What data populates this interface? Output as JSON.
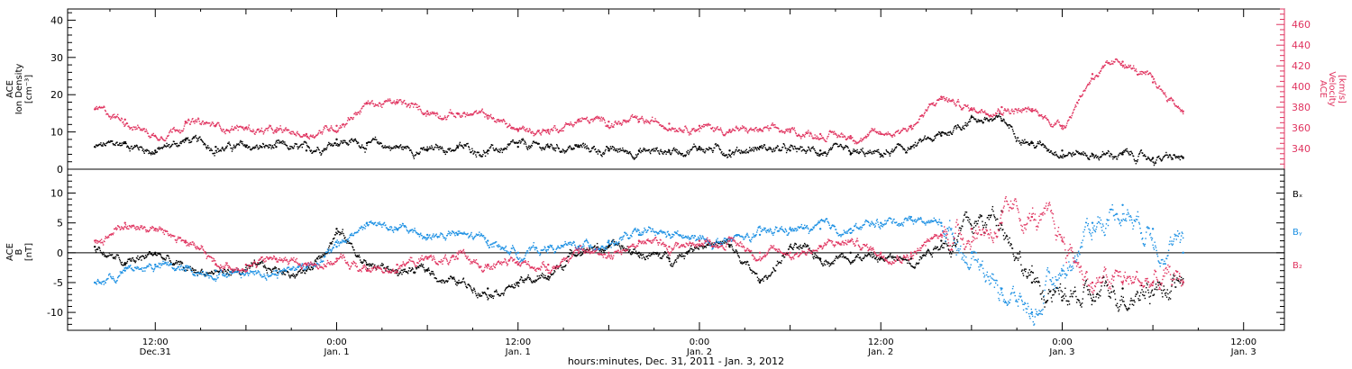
{
  "colors": {
    "density": "#000000",
    "velocity": "#e0335f",
    "bx": "#000000",
    "by": "#1a8fe3",
    "bz": "#e0335f"
  },
  "x_axis": {
    "label": "hours:minutes, Dec. 31, 2011 - Jan.  3, 2012",
    "ticks": [
      {
        "h": 12,
        "time": "12:00",
        "date": "Dec.31"
      },
      {
        "h": 24,
        "time": "0:00",
        "date": "Jan. 1"
      },
      {
        "h": 36,
        "time": "12:00",
        "date": "Jan. 1"
      },
      {
        "h": 48,
        "time": "0:00",
        "date": "Jan. 2"
      },
      {
        "h": 60,
        "time": "12:00",
        "date": "Jan. 2"
      },
      {
        "h": 72,
        "time": "0:00",
        "date": "Jan. 3"
      },
      {
        "h": 84,
        "time": "12:00",
        "date": "Jan. 3"
      }
    ]
  },
  "chart_data": [
    {
      "type": "scatter",
      "panel": "top",
      "ylabel_left": [
        "ACE",
        "Ion Density",
        "[cm⁻³]"
      ],
      "ylabel_right": [
        "ACE",
        "Velocity",
        "[km/s]"
      ],
      "ylim_left": [
        0,
        43
      ],
      "yticks_left": [
        "0",
        "10",
        "20",
        "30",
        "40"
      ],
      "ylim_right": [
        320,
        475
      ],
      "yticks_right": [
        "340",
        "360",
        "380",
        "400",
        "420",
        "440",
        "460"
      ],
      "x_hours": [
        8,
        10,
        12,
        14,
        16,
        18,
        20,
        22,
        24,
        26,
        28,
        30,
        32,
        34,
        36,
        38,
        40,
        42,
        44,
        46,
        48,
        50,
        52,
        54,
        56,
        58,
        60,
        62,
        64,
        66,
        68,
        70,
        72,
        74,
        76,
        78,
        80
      ],
      "series": [
        {
          "axis": "left",
          "color_key": "density",
          "values": [
            6,
            7,
            5,
            8,
            6,
            6,
            6,
            5,
            8,
            7,
            6,
            5,
            6,
            5,
            6,
            6,
            6,
            5,
            5,
            5,
            6,
            5,
            6,
            5,
            5,
            4,
            4,
            6,
            9,
            14,
            13,
            7,
            5,
            4,
            4,
            3,
            3
          ]
        },
        {
          "axis": "right",
          "color_key": "velocity",
          "values": [
            378,
            368,
            352,
            366,
            362,
            360,
            356,
            354,
            362,
            384,
            384,
            376,
            374,
            372,
            358,
            358,
            368,
            366,
            366,
            364,
            362,
            358,
            358,
            356,
            354,
            352,
            354,
            362,
            390,
            378,
            380,
            376,
            362,
            412,
            424,
            404,
            376
          ]
        }
      ]
    },
    {
      "type": "scatter",
      "panel": "bottom",
      "ylabel_left": [
        "ACE",
        "B",
        "[nT]"
      ],
      "ylim": [
        -13,
        14
      ],
      "yticks": [
        "-10",
        "-5",
        "0",
        "5",
        "10"
      ],
      "legend": [
        "Bₓ",
        "Bᵧ",
        "B₂"
      ],
      "legend_placement": "right",
      "x_hours": [
        8,
        10,
        12,
        14,
        16,
        18,
        20,
        22,
        24,
        26,
        28,
        30,
        32,
        34,
        36,
        38,
        40,
        42,
        44,
        46,
        48,
        50,
        52,
        54,
        56,
        58,
        60,
        62,
        64,
        66,
        68,
        70,
        72,
        74,
        76,
        78,
        80
      ],
      "series": [
        {
          "color_key": "bx",
          "name": "Bₓ",
          "values": [
            1,
            -2,
            0,
            -3,
            -3,
            -3,
            -3,
            -3,
            4,
            -2,
            -3,
            -3,
            -5,
            -6,
            -5,
            -4,
            1,
            1,
            0,
            -1,
            2,
            1,
            -5,
            1,
            -1,
            0,
            -1,
            -1,
            2,
            4,
            7,
            -5,
            -8,
            -8,
            -6,
            -5,
            -5
          ]
        },
        {
          "color_key": "by",
          "name": "Bᵧ",
          "values": [
            -5,
            -3,
            -2,
            -3,
            -3,
            -3,
            -3,
            -2,
            1,
            5,
            4,
            3,
            3,
            2,
            0,
            1,
            1,
            2,
            3,
            3,
            2,
            2,
            3,
            4,
            4,
            4,
            5,
            6,
            5,
            0,
            -6,
            -10,
            -3,
            5,
            8,
            4,
            0
          ]
        },
        {
          "color_key": "bz",
          "name": "B₂",
          "values": [
            2,
            5,
            4,
            2,
            -2,
            -2,
            -1,
            -2,
            -1,
            -3,
            -2,
            -1,
            -1,
            -2,
            -2,
            -2,
            0,
            0,
            2,
            1,
            2,
            2,
            0,
            0,
            1,
            2,
            0,
            0,
            3,
            4,
            5,
            6,
            2,
            -5,
            -5,
            -5,
            -5
          ]
        }
      ]
    }
  ]
}
